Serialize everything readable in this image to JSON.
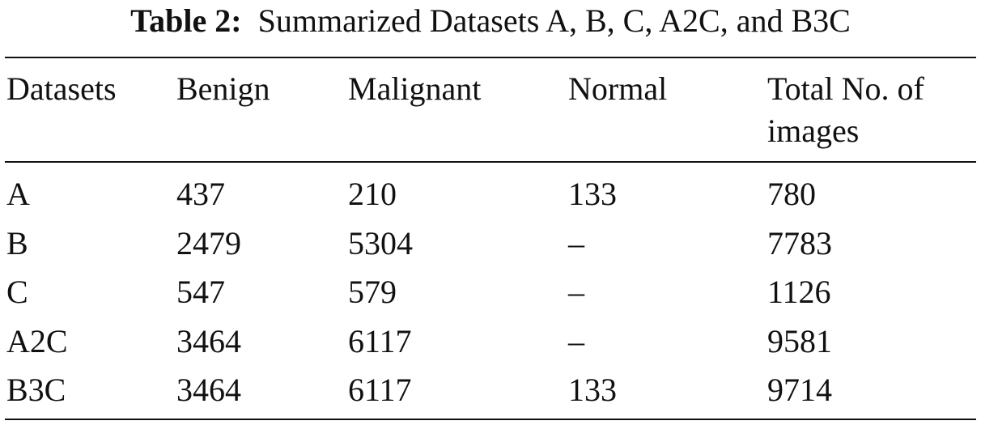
{
  "caption": {
    "label": "Table 2:",
    "text": "Summarized Datasets A, B, C, A2C, and B3C"
  },
  "table": {
    "headers": [
      "Datasets",
      "Benign",
      "Malignant",
      "Normal",
      "Total No. of images"
    ],
    "rows": [
      [
        "A",
        "437",
        "210",
        "133",
        "780"
      ],
      [
        "B",
        "2479",
        "5304",
        "–",
        "7783"
      ],
      [
        "C",
        "547",
        "579",
        "–",
        "1126"
      ],
      [
        "A2C",
        "3464",
        "6117",
        "–",
        "9581"
      ],
      [
        "B3C",
        "3464",
        "6117",
        "133",
        "9714"
      ]
    ]
  }
}
